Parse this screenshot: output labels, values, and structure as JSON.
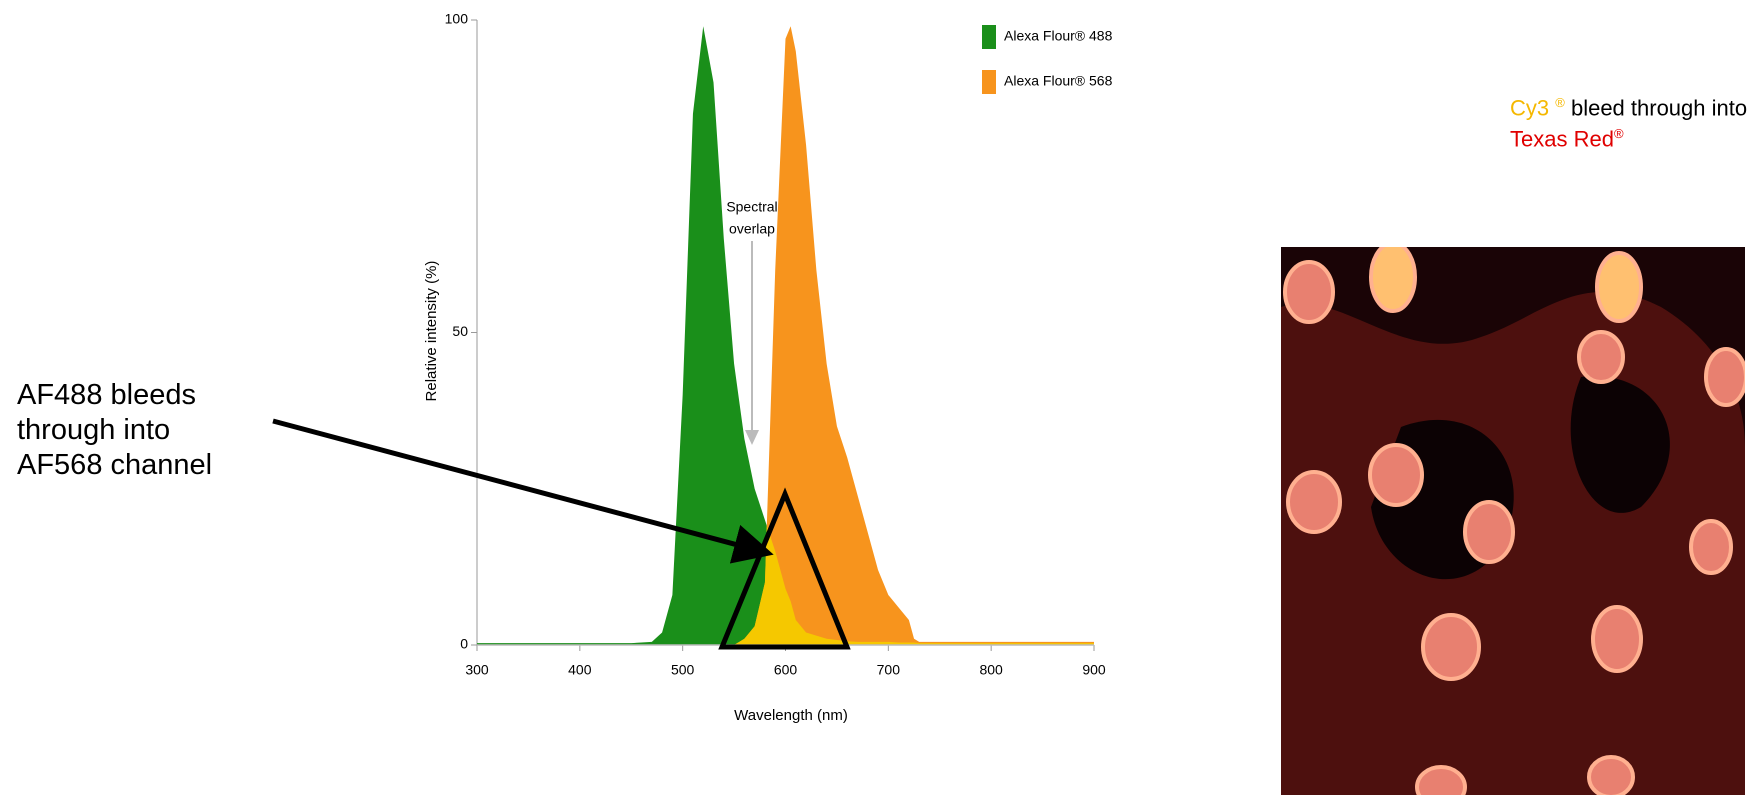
{
  "chart_data": {
    "type": "area",
    "x": [
      300,
      400,
      450,
      470,
      480,
      490,
      500,
      510,
      520,
      530,
      540,
      550,
      560,
      570,
      580,
      590,
      600,
      605,
      610,
      620,
      630,
      640,
      650,
      660,
      670,
      680,
      690,
      700,
      710,
      720,
      725,
      730,
      800,
      900
    ],
    "series": [
      {
        "name": "Alexa Flour® 488",
        "color": "#1a8f1a",
        "values": [
          0.3,
          0.3,
          0.3,
          0.5,
          2,
          8,
          40,
          85,
          99,
          90,
          65,
          45,
          33,
          25,
          20,
          15,
          9,
          7,
          4,
          2,
          1.5,
          1,
          0.8,
          0.6,
          0.5,
          0.5,
          0.5,
          0.5,
          0.4,
          0.4,
          0.4,
          0.3,
          0.3,
          0.3
        ]
      },
      {
        "name": "Alexa Flour® 568",
        "color": "#f7941d",
        "values": [
          0,
          0,
          0,
          0,
          0,
          0,
          0,
          0,
          0,
          0,
          0,
          0,
          1,
          3,
          10,
          60,
          97,
          99,
          95,
          80,
          60,
          45,
          35,
          30,
          24,
          18,
          12,
          8,
          6,
          4,
          1,
          0.5,
          0.5,
          0.5
        ]
      }
    ],
    "overlap_color": "#f5c800",
    "xlabel": "Wavelength (nm)",
    "ylabel": "Relative intensity (%)",
    "xlim": [
      300,
      900
    ],
    "xticks": [
      300,
      400,
      500,
      600,
      700,
      800,
      900
    ],
    "ylim": [
      0,
      100
    ],
    "yticks": [
      0,
      50,
      100
    ],
    "legend": "upper right",
    "annotation_overlap": [
      "Spectral",
      "overlap"
    ],
    "annotation": "AF488 bleeds through into AF568 channel"
  },
  "caption": {
    "dye": "Cy3",
    "dye_mark": "®",
    "middle": " bleed through into ",
    "target": "Texas Red",
    "target_mark": "®"
  }
}
